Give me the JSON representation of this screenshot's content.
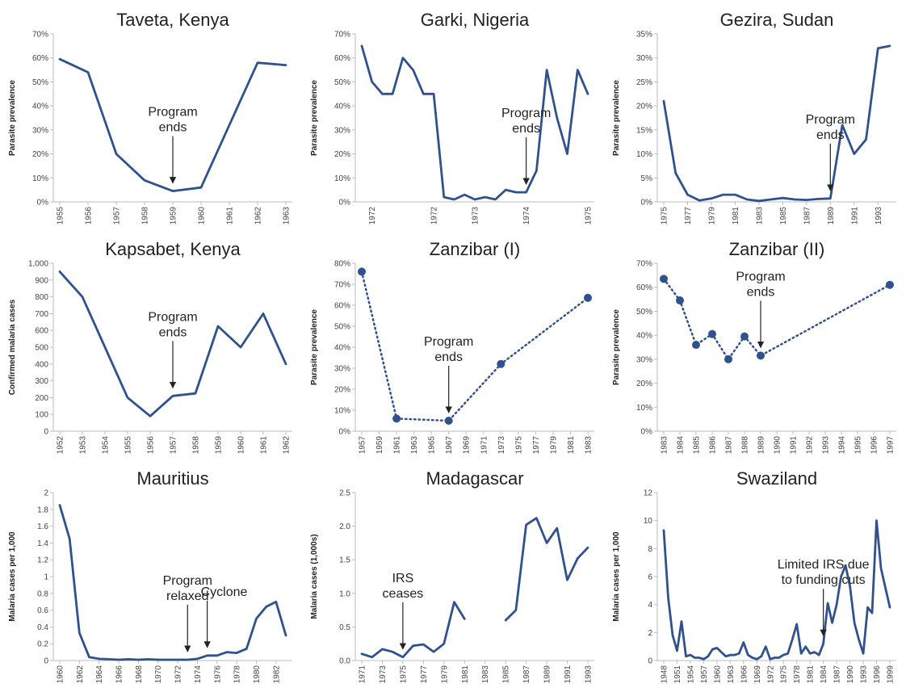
{
  "chart_data": [
    {
      "type": "line",
      "title": "Taveta, Kenya",
      "ylabel": "Parasite prevalence",
      "color": "#2f528f",
      "linestyle": "solid",
      "markers": false,
      "grid": false,
      "x": [
        1955,
        1956,
        1957,
        1958,
        1959,
        1960,
        1961,
        1962,
        1963
      ],
      "values": [
        59.5,
        54,
        20,
        9,
        4.5,
        6,
        32,
        58,
        57
      ],
      "xlim": [
        1955,
        1963
      ],
      "xticks": [
        1955,
        1956,
        1957,
        1958,
        1959,
        1960,
        1961,
        1962,
        1963
      ],
      "ylim": [
        0,
        70
      ],
      "yticks": [
        {
          "value": 0,
          "label": "0%"
        },
        {
          "value": 10,
          "label": "10%"
        },
        {
          "value": 20,
          "label": "20%"
        },
        {
          "value": 30,
          "label": "30%"
        },
        {
          "value": 40,
          "label": "40%"
        },
        {
          "value": 50,
          "label": "50%"
        },
        {
          "value": 60,
          "label": "60%"
        },
        {
          "value": 70,
          "label": "70%"
        }
      ],
      "annotations": [
        {
          "lines": [
            "Program",
            "ends"
          ],
          "at": 1959
        }
      ]
    },
    {
      "type": "line",
      "title": "Garki, Nigeria",
      "ylabel": "Parasite prevalence",
      "color": "#2f528f",
      "linestyle": "solid",
      "markers": false,
      "grid": false,
      "categories": [
        null,
        "1972",
        null,
        null,
        null,
        null,
        null,
        "1972",
        null,
        null,
        null,
        "1973",
        null,
        null,
        null,
        null,
        "1974",
        null,
        null,
        null,
        null,
        null,
        "1975"
      ],
      "values": [
        65,
        50,
        45,
        45,
        60,
        55,
        45,
        45,
        2,
        1,
        3,
        1,
        2,
        1,
        5,
        4,
        4,
        13,
        55,
        35,
        20,
        55,
        45
      ],
      "ylim": [
        0,
        70
      ],
      "yticks": [
        {
          "value": 0,
          "label": "0%"
        },
        {
          "value": 10,
          "label": "10%"
        },
        {
          "value": 20,
          "label": "20%"
        },
        {
          "value": 30,
          "label": "30%"
        },
        {
          "value": 40,
          "label": "40%"
        },
        {
          "value": 50,
          "label": "50%"
        },
        {
          "value": 60,
          "label": "60%"
        },
        {
          "value": 70,
          "label": "70%"
        }
      ],
      "annotations": [
        {
          "lines": [
            "Program",
            "ends"
          ],
          "at": 16
        }
      ]
    },
    {
      "type": "line",
      "title": "Gezira, Sudan",
      "ylabel": "Parasite prevalence",
      "color": "#2f528f",
      "linestyle": "solid",
      "markers": false,
      "grid": false,
      "x": [
        1975,
        1976,
        1977,
        1978,
        1979,
        1980,
        1981,
        1982,
        1983,
        1984,
        1985,
        1986,
        1987,
        1988,
        1989,
        1990,
        1991,
        1992,
        1993,
        1994
      ],
      "values": [
        21,
        6,
        1.5,
        0.3,
        0.7,
        1.5,
        1.5,
        0.5,
        0.2,
        0.5,
        0.8,
        0.5,
        0.4,
        0.6,
        0.7,
        16,
        10,
        13,
        32,
        32.5
      ],
      "xlim": [
        1975,
        1994
      ],
      "xticks": [
        1975,
        1977,
        1979,
        1981,
        1983,
        1985,
        1987,
        1989,
        1991,
        1993
      ],
      "ylim": [
        0,
        35
      ],
      "yticks": [
        {
          "value": 0,
          "label": "0%"
        },
        {
          "value": 5,
          "label": "5%"
        },
        {
          "value": 10,
          "label": "10%"
        },
        {
          "value": 15,
          "label": "15%"
        },
        {
          "value": 20,
          "label": "20%"
        },
        {
          "value": 25,
          "label": "25%"
        },
        {
          "value": 30,
          "label": "30%"
        },
        {
          "value": 35,
          "label": "35%"
        }
      ],
      "annotations": [
        {
          "lines": [
            "Program",
            "ends"
          ],
          "at": 1989
        }
      ]
    },
    {
      "type": "line",
      "title": "Kapsabet, Kenya",
      "ylabel": "Confirmed malaria cases",
      "color": "#2f528f",
      "linestyle": "solid",
      "markers": false,
      "grid": false,
      "x": [
        1952,
        1953,
        1954,
        1955,
        1956,
        1957,
        1958,
        1959,
        1960,
        1961,
        1962
      ],
      "values": [
        950,
        800,
        500,
        200,
        90,
        210,
        225,
        625,
        500,
        700,
        400
      ],
      "xlim": [
        1952,
        1962
      ],
      "xticks": [
        1952,
        1953,
        1954,
        1955,
        1956,
        1957,
        1958,
        1959,
        1960,
        1961,
        1962
      ],
      "ylim": [
        0,
        1000
      ],
      "yticks": [
        0,
        100,
        200,
        300,
        400,
        500,
        600,
        700,
        800,
        900,
        {
          "value": 1000,
          "label": "1,000"
        }
      ],
      "annotations": [
        {
          "lines": [
            "Program",
            "ends"
          ],
          "at": 1957
        }
      ]
    },
    {
      "type": "line",
      "title": "Zanzibar (I)",
      "ylabel": "Parasite prevalence",
      "color": "#2f528f",
      "linestyle": "dotted",
      "markers": true,
      "grid": false,
      "x": [
        1957,
        1961,
        1967,
        1973,
        1983
      ],
      "values": [
        76,
        6,
        5,
        32,
        63.5
      ],
      "xlim": [
        1957,
        1983
      ],
      "xticks": [
        1957,
        1959,
        1961,
        1963,
        1965,
        1967,
        1969,
        1971,
        1973,
        1975,
        1977,
        1979,
        1981,
        1983
      ],
      "ylim": [
        0,
        80
      ],
      "yticks": [
        {
          "value": 0,
          "label": "0%"
        },
        {
          "value": 10,
          "label": "10%"
        },
        {
          "value": 20,
          "label": "20%"
        },
        {
          "value": 30,
          "label": "30%"
        },
        {
          "value": 40,
          "label": "40%"
        },
        {
          "value": 50,
          "label": "50%"
        },
        {
          "value": 60,
          "label": "60%"
        },
        {
          "value": 70,
          "label": "70%"
        },
        {
          "value": 80,
          "label": "80%"
        }
      ],
      "annotations": [
        {
          "lines": [
            "Program",
            "ends"
          ],
          "at": 1967
        }
      ]
    },
    {
      "type": "line",
      "title": "Zanzibar (II)",
      "ylabel": "Parasite prevalence",
      "color": "#2f528f",
      "linestyle": "dotted",
      "markers": true,
      "grid": false,
      "x": [
        1983,
        1984,
        1985,
        1986,
        1987,
        1988,
        1989,
        1997
      ],
      "values": [
        63.5,
        54.5,
        36,
        40.5,
        30,
        39.5,
        31.5,
        61
      ],
      "xlim": [
        1983,
        1997
      ],
      "xticks": [
        1983,
        1984,
        1985,
        1986,
        1987,
        1988,
        1989,
        1990,
        1991,
        1992,
        1993,
        1994,
        1995,
        1996,
        1997
      ],
      "ylim": [
        0,
        70
      ],
      "yticks": [
        {
          "value": 0,
          "label": "0%"
        },
        {
          "value": 10,
          "label": "10%"
        },
        {
          "value": 20,
          "label": "20%"
        },
        {
          "value": 30,
          "label": "30%"
        },
        {
          "value": 40,
          "label": "40%"
        },
        {
          "value": 50,
          "label": "50%"
        },
        {
          "value": 60,
          "label": "60%"
        },
        {
          "value": 70,
          "label": "70%"
        }
      ],
      "annotations": [
        {
          "lines": [
            "Program",
            "ends"
          ],
          "at": 1989
        }
      ]
    },
    {
      "type": "line",
      "title": "Mauritius",
      "ylabel": "Malaria cases per 1,000",
      "color": "#2f528f",
      "linestyle": "solid",
      "markers": false,
      "grid": false,
      "x": [
        1960,
        1961,
        1962,
        1963,
        1964,
        1965,
        1966,
        1967,
        1968,
        1969,
        1970,
        1971,
        1972,
        1973,
        1974,
        1975,
        1976,
        1977,
        1978,
        1979,
        1980,
        1981,
        1982,
        1983
      ],
      "values": [
        1.85,
        1.45,
        0.33,
        0.04,
        0.02,
        0.015,
        0.01,
        0.015,
        0.01,
        0.015,
        0.01,
        0.01,
        0.01,
        0.01,
        0.02,
        0.06,
        0.06,
        0.1,
        0.09,
        0.14,
        0.5,
        0.64,
        0.7,
        0.3
      ],
      "xlim": [
        1960,
        1983
      ],
      "xticks": [
        1960,
        1962,
        1964,
        1966,
        1968,
        1970,
        1972,
        1974,
        1976,
        1978,
        1980,
        1982
      ],
      "ylim": [
        0,
        2
      ],
      "yticks": [
        0,
        0.2,
        0.4,
        0.6,
        0.8,
        1,
        1.2,
        1.4,
        1.6,
        1.8,
        2
      ],
      "annotations": [
        {
          "lines": [
            "Program",
            "relaxed"
          ],
          "at": 1973
        },
        {
          "lines": [
            "Cyclone"
          ],
          "at": 1975
        }
      ]
    },
    {
      "type": "line",
      "title": "Madagascar",
      "ylabel": "Malaria cases (1,000s)",
      "color": "#2f528f",
      "linestyle": "solid",
      "markers": false,
      "grid": false,
      "x": [
        1971,
        1972,
        1973,
        1974,
        1975,
        1976,
        1977,
        1978,
        1979,
        1980,
        1981,
        1982,
        1983,
        1984,
        1985,
        1986,
        1987,
        1988,
        1989,
        1990,
        1991,
        1992,
        1993
      ],
      "values": [
        0.1,
        0.05,
        0.17,
        0.13,
        0.05,
        0.22,
        0.24,
        0.13,
        0.25,
        0.87,
        0.62,
        null,
        null,
        null,
        0.6,
        0.75,
        2.02,
        2.12,
        1.75,
        1.97,
        1.2,
        1.52,
        1.68
      ],
      "xlim": [
        1971,
        1993
      ],
      "xticks": [
        1971,
        1973,
        1975,
        1977,
        1979,
        1981,
        1983,
        1985,
        1987,
        1989,
        1991,
        1993
      ],
      "ylim": [
        0,
        2.5
      ],
      "yticks": [
        {
          "value": 0,
          "label": "0.0"
        },
        {
          "value": 0.5,
          "label": "0.5"
        },
        {
          "value": 1,
          "label": "1.0"
        },
        {
          "value": 1.5,
          "label": "1.5"
        },
        {
          "value": 2,
          "label": "2.0"
        },
        {
          "value": 2.5,
          "label": "2.5"
        }
      ],
      "annotations": [
        {
          "lines": [
            "IRS",
            "ceases"
          ],
          "at": 1975
        }
      ]
    },
    {
      "type": "line",
      "title": "Swaziland",
      "ylabel": "Malaria cases per 1,000",
      "color": "#2f528f",
      "linestyle": "solid",
      "markers": false,
      "grid": false,
      "x": [
        1948,
        1949,
        1950,
        1951,
        1952,
        1953,
        1954,
        1955,
        1956,
        1957,
        1958,
        1959,
        1960,
        1961,
        1962,
        1963,
        1964,
        1965,
        1966,
        1967,
        1968,
        1969,
        1970,
        1971,
        1972,
        1973,
        1974,
        1975,
        1976,
        1977,
        1978,
        1979,
        1980,
        1981,
        1982,
        1983,
        1984,
        1985,
        1986,
        1987,
        1988,
        1989,
        1990,
        1991,
        1992,
        1993,
        1994,
        1995,
        1996,
        1997,
        1998,
        1999
      ],
      "values": [
        9.3,
        4.5,
        1.8,
        0.7,
        2.8,
        0.3,
        0.4,
        0.2,
        0.2,
        0.1,
        0.3,
        0.8,
        0.9,
        0.6,
        0.3,
        0.4,
        0.4,
        0.5,
        1.3,
        0.4,
        0.2,
        0.1,
        0.3,
        1.0,
        0.1,
        0.2,
        0.2,
        0.4,
        0.5,
        1.5,
        2.6,
        0.5,
        1.0,
        0.5,
        0.6,
        0.4,
        1.2,
        4.1,
        2.7,
        4.0,
        6.0,
        6.8,
        5.3,
        2.7,
        1.5,
        0.5,
        3.8,
        3.4,
        10.0,
        6.6,
        5.2,
        3.8
      ],
      "xlim": [
        1948,
        1999
      ],
      "xticks": [
        1948,
        1951,
        1954,
        1957,
        1960,
        1963,
        1966,
        1969,
        1972,
        1975,
        1978,
        1981,
        1984,
        1987,
        1990,
        1993,
        1996,
        1999
      ],
      "ylim": [
        0,
        12
      ],
      "yticks": [
        0,
        2,
        4,
        6,
        8,
        10,
        12
      ],
      "annotations": [
        {
          "lines": [
            "Limited IRS due",
            "to funding cuts"
          ],
          "at": 1984
        }
      ]
    }
  ]
}
